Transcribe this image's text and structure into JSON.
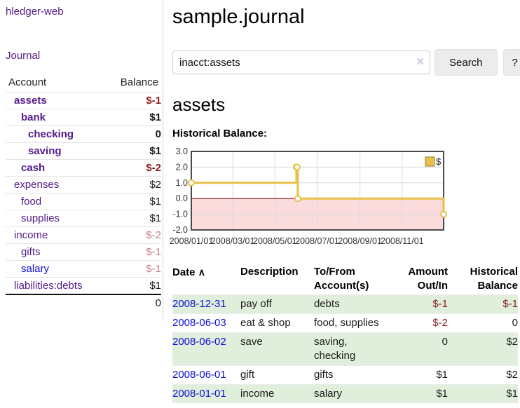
{
  "sidebar": {
    "app_title": "hledger-web",
    "nav": {
      "journal": "Journal"
    },
    "table": {
      "account_header": "Account",
      "balance_header": "Balance",
      "accounts": [
        {
          "name": "assets",
          "depth": 1,
          "bold": true,
          "balance": "$-1"
        },
        {
          "name": "bank",
          "depth": 2,
          "bold": true,
          "balance": "$1"
        },
        {
          "name": "checking",
          "depth": 3,
          "bold": true,
          "balance": "0"
        },
        {
          "name": "saving",
          "depth": 3,
          "bold": true,
          "balance": "$1"
        },
        {
          "name": "cash",
          "depth": 2,
          "bold": true,
          "balance": "$-2"
        },
        {
          "name": "expenses",
          "depth": 1,
          "bold": false,
          "balance": "$2"
        },
        {
          "name": "food",
          "depth": 2,
          "bold": false,
          "balance": "$1"
        },
        {
          "name": "supplies",
          "depth": 2,
          "bold": false,
          "balance": "$1"
        },
        {
          "name": "income",
          "depth": 1,
          "bold": false,
          "balance": "$-2"
        },
        {
          "name": "gifts",
          "depth": 2,
          "bold": false,
          "balance": "$-1"
        },
        {
          "name": "salary",
          "depth": 2,
          "bold": false,
          "balance": "$-1",
          "link_blue": true
        },
        {
          "name": "liabilities:debts",
          "depth": 1,
          "bold": false,
          "balance": "$1"
        }
      ],
      "total": "0"
    }
  },
  "main": {
    "title": "sample.journal",
    "search": {
      "value": "inacct:assets",
      "clear_icon": "✕",
      "button_label": "Search",
      "help_label": "?"
    },
    "account_heading": "assets",
    "chart_title": "Historical Balance:"
  },
  "chart_data": {
    "type": "line",
    "step": true,
    "title": "Historical Balance",
    "series": [
      {
        "name": "$",
        "points": [
          [
            "2008-01-01",
            1.0
          ],
          [
            "2008-06-01",
            2.0
          ],
          [
            "2008-06-02",
            2.0
          ],
          [
            "2008-06-03",
            0.0
          ],
          [
            "2008-12-31",
            -1.0
          ]
        ]
      }
    ],
    "x_range": [
      "2008-01-01",
      "2008-12-31"
    ],
    "ylim": [
      -2.0,
      3.0
    ],
    "x_ticks": [
      "2008/01/01",
      "2008/03/01",
      "2008/05/01",
      "2008/07/01",
      "2008/09/01",
      "2008/11/01"
    ],
    "y_ticks": [
      3.0,
      2.0,
      1.0,
      0.0,
      -1.0,
      -2.0
    ],
    "legend_position": "top-right",
    "grid": true,
    "line_color": "#e7c14b",
    "negative_region_color": "#fbdcdc",
    "zero_line_color": "#8b0000"
  },
  "register": {
    "headers": [
      "Date",
      "Description",
      "To/From Account(s)",
      "Amount Out/In",
      "Historical Balance"
    ],
    "sort_indicator": "∧",
    "rows": [
      {
        "date": "2008-12-31",
        "description": "pay off",
        "accounts": "debts",
        "amount": "$-1",
        "balance": "$-1"
      },
      {
        "date": "2008-06-03",
        "description": "eat & shop",
        "accounts": "food, supplies",
        "amount": "$-2",
        "balance": "0"
      },
      {
        "date": "2008-06-02",
        "description": "save",
        "accounts": "saving, checking",
        "amount": "0",
        "balance": "$2"
      },
      {
        "date": "2008-06-01",
        "description": "gift",
        "accounts": "gifts",
        "amount": "$1",
        "balance": "$2"
      },
      {
        "date": "2008-01-01",
        "description": "income",
        "accounts": "salary",
        "amount": "$1",
        "balance": "$1"
      }
    ]
  },
  "colors": {
    "link_purple": "#551a8b",
    "link_blue": "#0f0fd8",
    "negative_strong": "#8c1d1d",
    "negative_light": "#c28289",
    "row_highlight_green": "#e0efdb",
    "chart_gold": "#e7c14b",
    "chart_negative_pink": "#fbdcdc",
    "chart_zero_line": "#8b0000"
  }
}
